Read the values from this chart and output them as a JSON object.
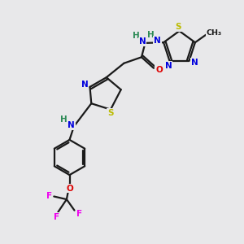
{
  "bg_color": "#e8e8ea",
  "bond_color": "#1a1a1a",
  "bond_width": 1.6,
  "atom_colors": {
    "N": "#0000dd",
    "O": "#dd0000",
    "S": "#bbbb00",
    "F": "#ee00ee",
    "C": "#1a1a1a",
    "H_label": "#2e8b57"
  },
  "font_size": 7.5,
  "fig_width": 3.0,
  "fig_height": 3.0,
  "xlim": [
    0,
    10
  ],
  "ylim": [
    0,
    10
  ]
}
